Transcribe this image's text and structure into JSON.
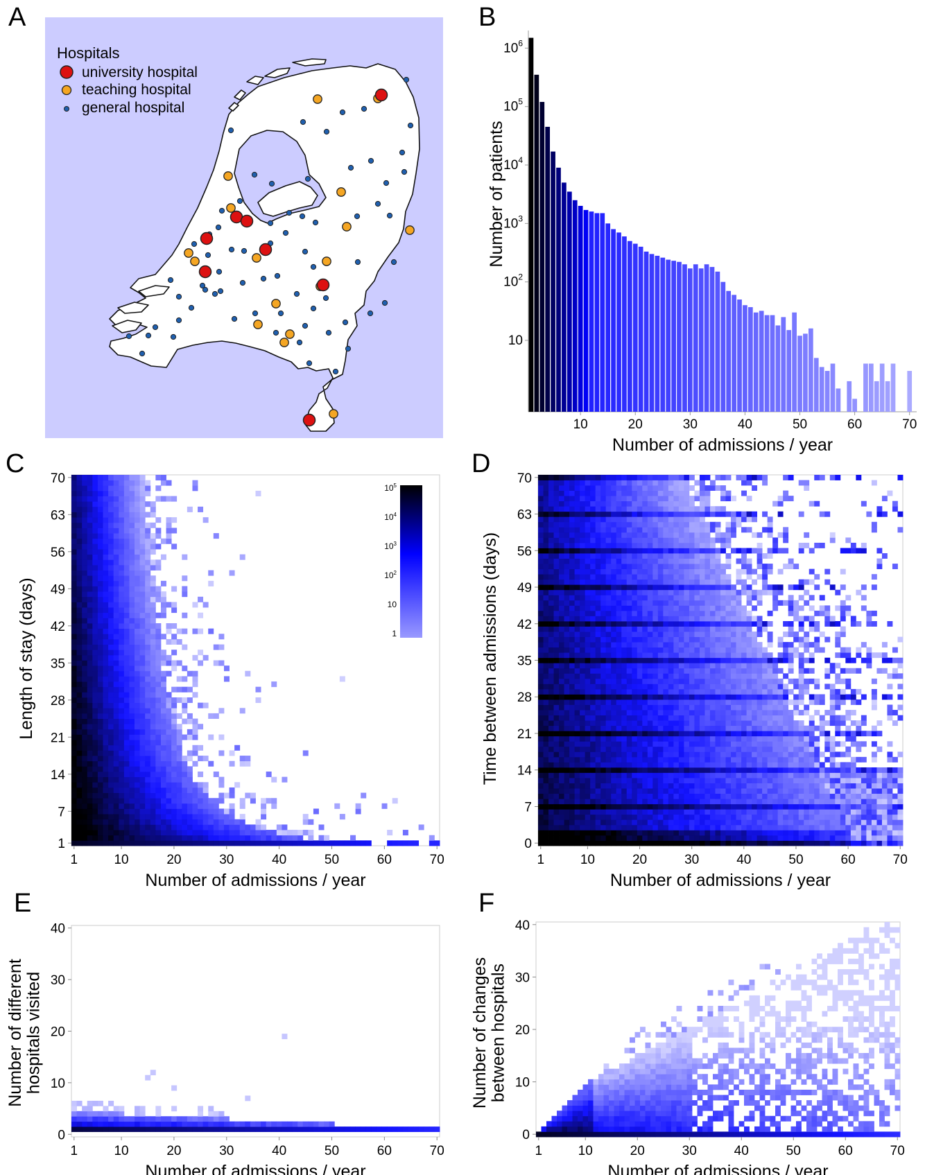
{
  "panels": {
    "A": "A",
    "B": "B",
    "C": "C",
    "D": "D",
    "E": "E",
    "F": "F"
  },
  "colors": {
    "map_background": "#ccccff",
    "land": "#ffffff",
    "university": "#dd1111",
    "teaching": "#f5a623",
    "general": "#1f5fae",
    "heat_dark": "#000000",
    "heat_mid": "#0000ff",
    "heat_light": "#e6e6ff"
  },
  "chart_data": [
    {
      "panel": "A",
      "type": "map",
      "legend": {
        "title": "Hospitals",
        "items": [
          {
            "label": "university hospital",
            "marker": "large-red-circle"
          },
          {
            "label": "teaching hospital",
            "marker": "medium-orange-circle"
          },
          {
            "label": "general hospital",
            "marker": "small-blue-circle"
          }
        ]
      },
      "hospital_counts_shown": {
        "university": 8,
        "teaching": 18,
        "general": 70
      }
    },
    {
      "panel": "B",
      "type": "bar",
      "xlabel": "Number of admissions / year",
      "ylabel": "Number of patients",
      "yscale": "log",
      "xticks": [
        "10",
        "20",
        "30",
        "40",
        "50",
        "60",
        "70"
      ],
      "yticks": [
        {
          "base": "10",
          "exp": "6"
        },
        {
          "base": "10",
          "exp": "5"
        },
        {
          "base": "10",
          "exp": "4"
        },
        {
          "base": "10",
          "exp": "3"
        },
        {
          "base": "10",
          "exp": "2"
        },
        {
          "base": "10",
          "exp": ""
        }
      ],
      "x": [
        1,
        2,
        3,
        4,
        5,
        6,
        7,
        8,
        9,
        10,
        11,
        12,
        13,
        14,
        15,
        16,
        17,
        18,
        19,
        20,
        21,
        22,
        23,
        24,
        25,
        26,
        27,
        28,
        29,
        30,
        31,
        32,
        33,
        34,
        35,
        36,
        37,
        38,
        39,
        40,
        41,
        42,
        43,
        44,
        45,
        46,
        47,
        48,
        49,
        50,
        51,
        52,
        53,
        54,
        55,
        56,
        57,
        58,
        59,
        60,
        61,
        62,
        63,
        64,
        65,
        66,
        67,
        68,
        69,
        70
      ],
      "values": [
        1500000,
        350000,
        120000,
        45000,
        17000,
        9000,
        5000,
        3500,
        2500,
        2000,
        1700,
        1600,
        1500,
        1500,
        1000,
        800,
        700,
        600,
        500,
        450,
        400,
        330,
        300,
        280,
        260,
        240,
        230,
        220,
        200,
        170,
        200,
        170,
        200,
        180,
        150,
        100,
        70,
        60,
        50,
        40,
        37,
        30,
        32,
        27,
        27,
        18,
        25,
        15,
        30,
        12,
        13,
        16,
        5,
        3.5,
        3,
        4,
        1.5,
        0,
        2,
        1,
        0,
        4,
        4,
        2,
        4,
        2,
        4,
        0,
        0,
        3
      ],
      "value_list_note": "",
      "bar_color_gradient": [
        "#000000",
        "#0000ff",
        "#b0b0ff"
      ]
    },
    {
      "panel": "C",
      "type": "heatmap",
      "xlabel": "Number of admissions / year",
      "ylabel": "Length of stay (days)",
      "xticks": [
        "1",
        "10",
        "20",
        "30",
        "40",
        "50",
        "60",
        "70"
      ],
      "yticks": [
        "1",
        "7",
        "14",
        "21",
        "28",
        "35",
        "42",
        "49",
        "56",
        "63",
        "70"
      ],
      "xlim": [
        1,
        70
      ],
      "ylim": [
        1,
        70
      ],
      "colorbar": {
        "scale": "log",
        "ticks": [
          {
            "base": "10",
            "exp": "5"
          },
          {
            "base": "10",
            "exp": "4"
          },
          {
            "base": "10",
            "exp": "3"
          },
          {
            "base": "10",
            "exp": "2"
          },
          {
            "base": "10",
            "exp": ""
          },
          {
            "base": "1",
            "exp": ""
          }
        ]
      }
    },
    {
      "panel": "D",
      "type": "heatmap",
      "xlabel": "Number of admissions / year",
      "ylabel": "Time between admissions (days)",
      "xticks": [
        "1",
        "10",
        "20",
        "30",
        "40",
        "50",
        "60",
        "70"
      ],
      "yticks": [
        "0",
        "7",
        "14",
        "21",
        "28",
        "35",
        "42",
        "49",
        "56",
        "63",
        "70"
      ],
      "xlim": [
        1,
        70
      ],
      "ylim": [
        0,
        70
      ]
    },
    {
      "panel": "E",
      "type": "heatmap",
      "xlabel": "Number of admissions / year",
      "ylabel_lines": [
        "Number of different",
        "hospitals visited"
      ],
      "xticks": [
        "1",
        "10",
        "20",
        "30",
        "40",
        "50",
        "60",
        "70"
      ],
      "yticks": [
        "0",
        "10",
        "20",
        "30",
        "40"
      ],
      "xlim": [
        1,
        70
      ],
      "ylim": [
        0,
        40
      ]
    },
    {
      "panel": "F",
      "type": "heatmap",
      "xlabel": "Number of admissions / year",
      "ylabel_lines": [
        "Number of changes",
        "between hospitals"
      ],
      "xticks": [
        "1",
        "10",
        "20",
        "30",
        "40",
        "50",
        "60",
        "70"
      ],
      "yticks": [
        "0",
        "10",
        "20",
        "30",
        "40"
      ],
      "xlim": [
        1,
        70
      ],
      "ylim": [
        0,
        40
      ]
    }
  ]
}
